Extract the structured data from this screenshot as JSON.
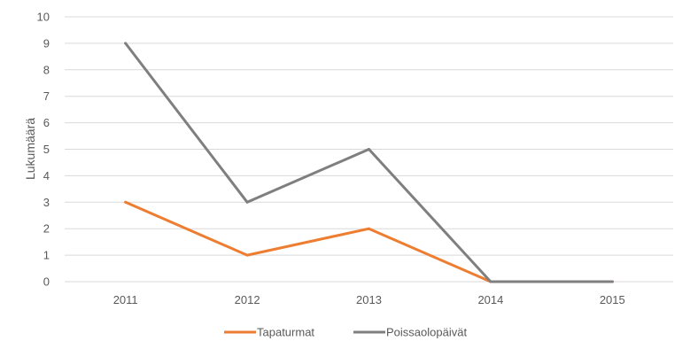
{
  "chart_data": {
    "type": "line",
    "categories": [
      "2011",
      "2012",
      "2013",
      "2014",
      "2015"
    ],
    "series": [
      {
        "name": "Tapaturmat",
        "color": "#ED7D31",
        "values": [
          3,
          1,
          2,
          0,
          0
        ]
      },
      {
        "name": "Poissaolopäivät",
        "color": "#7F7F7F",
        "values": [
          9,
          3,
          5,
          0,
          0
        ]
      }
    ],
    "ylabel": "Lukumäärä",
    "ylim": [
      0,
      10
    ],
    "yticks": [
      "0",
      "1",
      "2",
      "3",
      "4",
      "5",
      "6",
      "7",
      "8",
      "9",
      "10"
    ],
    "grid": true,
    "legend": "bottom-center"
  }
}
